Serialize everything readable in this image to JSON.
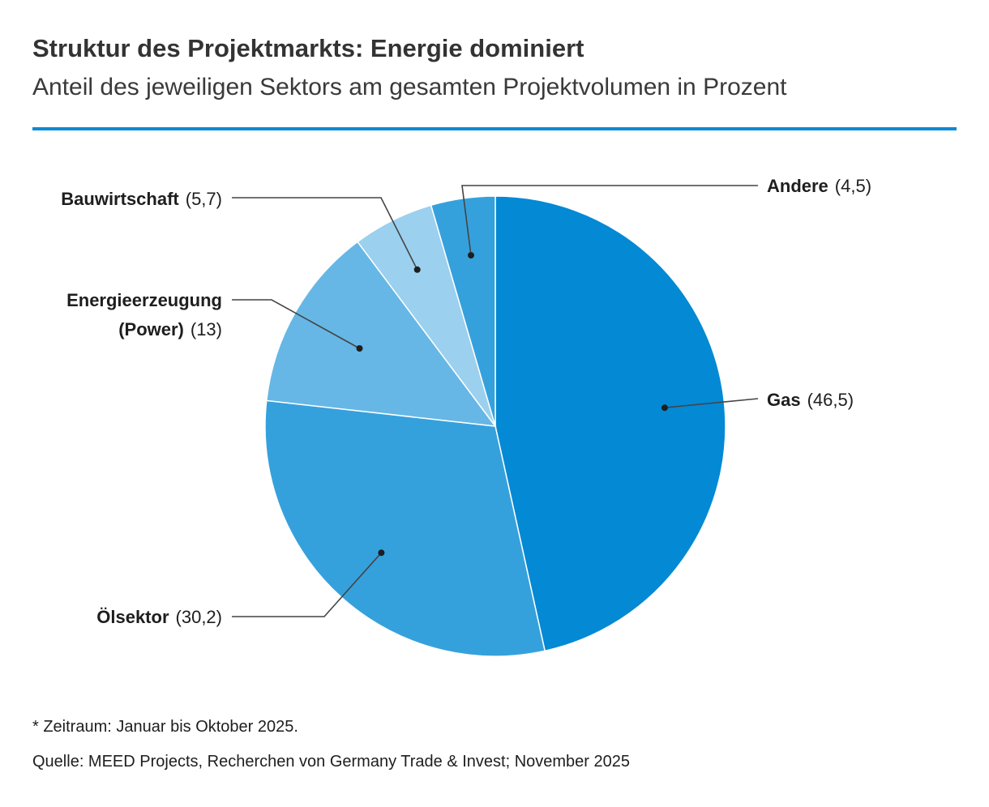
{
  "header": {
    "title": "Struktur des Projektmarkts: Energie dominiert",
    "subtitle": "Anteil des jeweiligen Sektors am gesamten Projektvolumen in Prozent"
  },
  "chart_data": {
    "type": "pie",
    "title": "Struktur des Projektmarkts: Energie dominiert",
    "subtitle": "Anteil des jeweiligen Sektors am gesamten Projektvolumen in Prozent",
    "unit": "Prozent",
    "slices": [
      {
        "name": "Gas",
        "value": 46.5,
        "display": "(46,5)",
        "color": "#0489d4"
      },
      {
        "name": "Ölsektor",
        "value": 30.2,
        "display": "(30,2)",
        "color": "#35a1dc"
      },
      {
        "name": "Energieerzeugung (Power)",
        "label_lines": [
          "Energieerzeugung",
          "(Power)"
        ],
        "value": 13,
        "display": "(13)",
        "color": "#66b7e5"
      },
      {
        "name": "Bauwirtschaft",
        "value": 5.7,
        "display": "(5,7)",
        "color": "#9bd0ee"
      },
      {
        "name": "Andere",
        "value": 4.5,
        "display": "(4,5)",
        "color": "#35a1dc"
      }
    ]
  },
  "footer": {
    "note": "* Zeitraum: Januar bis Oktober 2025.",
    "source": "Quelle: MEED Projects, Recherchen von Germany Trade & Invest; November 2025"
  }
}
